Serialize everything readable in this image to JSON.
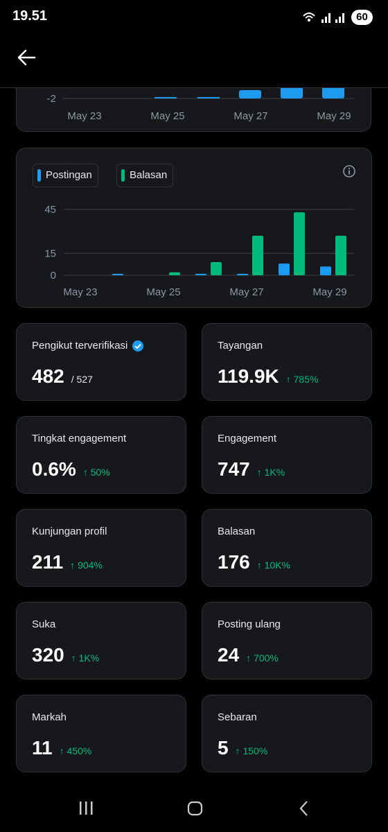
{
  "status_bar": {
    "time": "19.51",
    "battery": "60"
  },
  "partial_chart": {
    "y_tick": "-2",
    "x_labels": [
      "May 23",
      "May 25",
      "May 27",
      "May 29"
    ]
  },
  "chart_data": {
    "type": "bar",
    "categories": [
      "May 23",
      null,
      "May 25",
      null,
      "May 27",
      null,
      "May 29"
    ],
    "series": [
      {
        "name": "Postingan",
        "color": "#1d9bf0",
        "values": [
          0,
          1,
          0,
          1,
          1,
          8,
          6
        ]
      },
      {
        "name": "Balasan",
        "color": "#00ba7c",
        "values": [
          0,
          0,
          2,
          9,
          27,
          43,
          27
        ]
      }
    ],
    "ylim": [
      0,
      45
    ],
    "yticks": [
      0,
      15,
      45
    ],
    "grid": true
  },
  "stats": [
    {
      "label": "Pengikut terverifikasi",
      "value": "482",
      "total": "/ 527"
    },
    {
      "label": "Tayangan",
      "value": "119.9K",
      "change": "785%"
    },
    {
      "label": "Tingkat engagement",
      "value": "0.6%",
      "change": "50%"
    },
    {
      "label": "Engagement",
      "value": "747",
      "change": "1K%"
    },
    {
      "label": "Kunjungan profil",
      "value": "211",
      "change": "904%"
    },
    {
      "label": "Balasan",
      "value": "176",
      "change": "10K%"
    },
    {
      "label": "Suka",
      "value": "320",
      "change": "1K%"
    },
    {
      "label": "Posting ulang",
      "value": "24",
      "change": "700%"
    },
    {
      "label": "Markah",
      "value": "11",
      "change": "450%"
    },
    {
      "label": "Sebaran",
      "value": "5",
      "change": "150%"
    }
  ]
}
